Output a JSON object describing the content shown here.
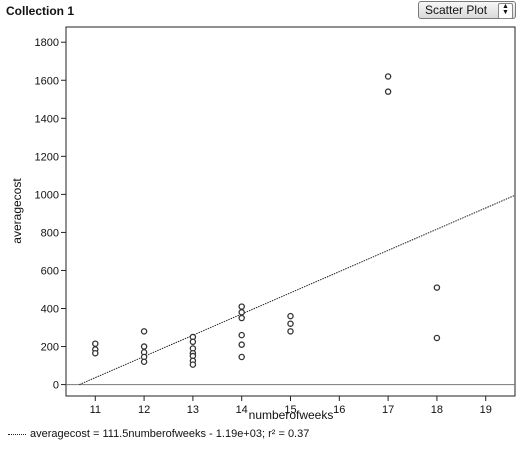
{
  "header": {
    "collection_title": "Collection 1",
    "plot_type": "Scatter Plot",
    "plot_type_arrows_icon": "up-down-arrows-icon"
  },
  "chart_data": {
    "type": "scatter",
    "title": "",
    "xlabel": "numberofweeks",
    "ylabel": "averagecost",
    "xlim": [
      10.4,
      19.6
    ],
    "ylim": [
      -60,
      1880
    ],
    "xticks": [
      11,
      12,
      13,
      14,
      15,
      16,
      17,
      18,
      19
    ],
    "yticks": [
      0,
      200,
      400,
      600,
      800,
      1000,
      1200,
      1400,
      1600,
      1800
    ],
    "grid": false,
    "marker_color": "#333333",
    "line_color": "#222222",
    "series": [
      {
        "points": [
          {
            "x": 11,
            "y": 215
          },
          {
            "x": 11,
            "y": 185
          },
          {
            "x": 11,
            "y": 165
          },
          {
            "x": 12,
            "y": 280
          },
          {
            "x": 12,
            "y": 200
          },
          {
            "x": 12,
            "y": 170
          },
          {
            "x": 12,
            "y": 145
          },
          {
            "x": 12,
            "y": 120
          },
          {
            "x": 13,
            "y": 250
          },
          {
            "x": 13,
            "y": 225
          },
          {
            "x": 13,
            "y": 190
          },
          {
            "x": 13,
            "y": 165
          },
          {
            "x": 13,
            "y": 150
          },
          {
            "x": 13,
            "y": 125
          },
          {
            "x": 13,
            "y": 105
          },
          {
            "x": 14,
            "y": 410
          },
          {
            "x": 14,
            "y": 380
          },
          {
            "x": 14,
            "y": 350
          },
          {
            "x": 14,
            "y": 260
          },
          {
            "x": 14,
            "y": 210
          },
          {
            "x": 14,
            "y": 145
          },
          {
            "x": 15,
            "y": 360
          },
          {
            "x": 15,
            "y": 320
          },
          {
            "x": 15,
            "y": 280
          },
          {
            "x": 17,
            "y": 1620
          },
          {
            "x": 17,
            "y": 1540
          },
          {
            "x": 18,
            "y": 510
          },
          {
            "x": 18,
            "y": 245
          }
        ]
      }
    ],
    "regression": {
      "slope": 111.5,
      "intercept": -1190,
      "r2": 0.37,
      "legend_text": "averagecost = 111.5numberofweeks - 1.19e+03; r² = 0.37"
    }
  }
}
